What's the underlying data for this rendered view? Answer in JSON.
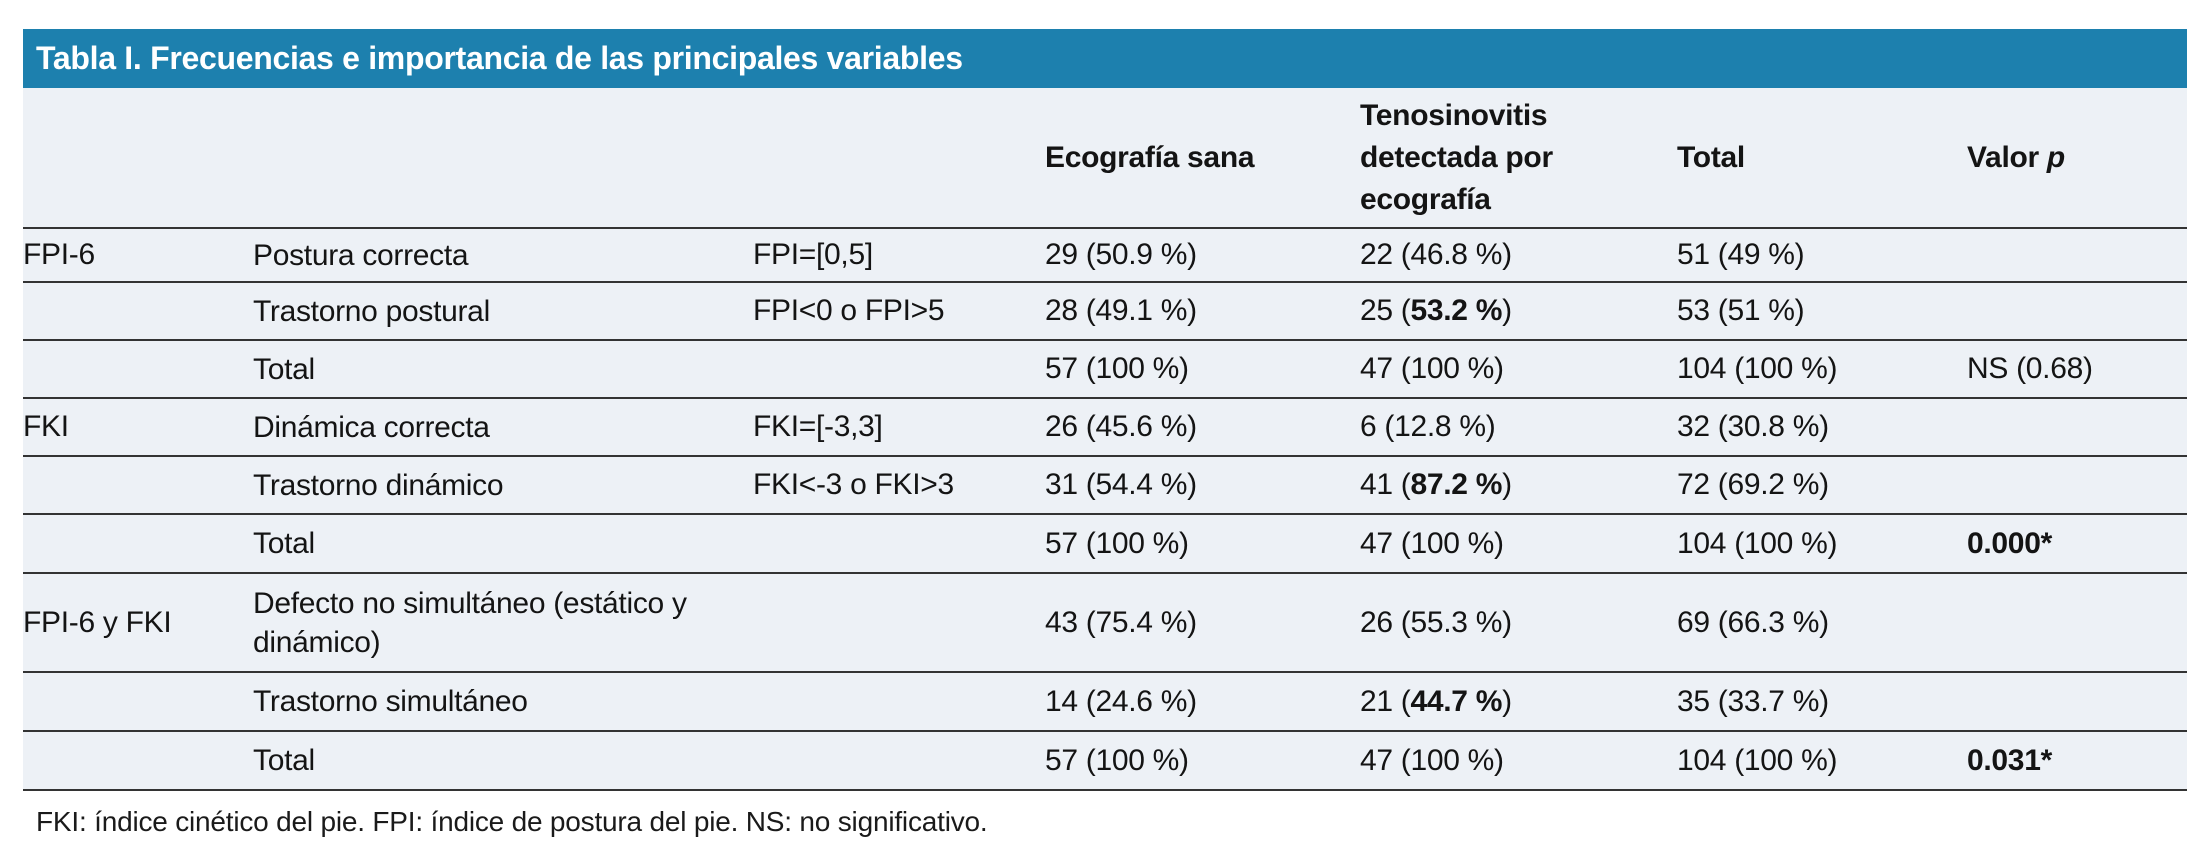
{
  "title": "Tabla I. Frecuencias e importancia de las principales variables",
  "colors": {
    "title_bar": "#1d80ae",
    "table_background": "#edf1f6",
    "rule_line": "#333333",
    "title_text": "#ffffff",
    "body_text": "#141414"
  },
  "columns": {
    "group": "",
    "variable": "",
    "criterion": "",
    "eco": "Ecografía sana",
    "teno": "Tenosinovitis detectada por ecografía",
    "total": "Total",
    "valor": "Valor ",
    "valor_p": "p"
  },
  "table": {
    "rows": [
      {
        "group": "FPI-6",
        "label": "Postura correcta",
        "criterion": "FPI=[0,5]",
        "eco": "29 (50.9 %)",
        "teno": {
          "pre": "22 (46.8 %)",
          "bold": "",
          "post": ""
        },
        "total": "51 (49 %)",
        "p": "",
        "p_bold": ""
      },
      {
        "group": "",
        "label": "Trastorno postural",
        "criterion": "FPI<0 o FPI>5",
        "eco": "28 (49.1 %)",
        "teno": {
          "pre": "25 (",
          "bold": "53.2 %",
          "post": ")"
        },
        "total": "53 (51 %)",
        "p": "",
        "p_bold": ""
      },
      {
        "group": "",
        "label": "Total",
        "criterion": "",
        "eco": "57 (100 %)",
        "teno": {
          "pre": "47 (100 %)",
          "bold": "",
          "post": ""
        },
        "total": "104 (100 %)",
        "p": "NS (0.68)",
        "p_bold": ""
      },
      {
        "group": "FKI",
        "label": "Dinámica correcta",
        "criterion": "FKI=[-3,3]",
        "eco": "26 (45.6 %)",
        "teno": {
          "pre": "6 (12.8 %)",
          "bold": "",
          "post": ""
        },
        "total": "32 (30.8 %)",
        "p": "",
        "p_bold": ""
      },
      {
        "group": "",
        "label": "Trastorno dinámico",
        "criterion": "FKI<-3 o FKI>3",
        "eco": "31 (54.4 %)",
        "teno": {
          "pre": "41 (",
          "bold": "87.2 %",
          "post": ")"
        },
        "total": "72 (69.2 %)",
        "p": "",
        "p_bold": ""
      },
      {
        "group": "",
        "label": "Total",
        "criterion": "",
        "eco": "57 (100 %)",
        "teno": {
          "pre": "47 (100 %)",
          "bold": "",
          "post": ""
        },
        "total": "104 (100 %)",
        "p": "",
        "p_bold": "0.000*"
      },
      {
        "group": "FPI-6 y FKI",
        "label": "Defecto no simultáneo (estático y dinámico)",
        "criterion": "",
        "eco": "43 (75.4 %)",
        "teno": {
          "pre": "26 (55.3 %)",
          "bold": "",
          "post": ""
        },
        "total": "69 (66.3 %)",
        "p": "",
        "p_bold": ""
      },
      {
        "group": "",
        "label": "Trastorno simultáneo",
        "criterion": "",
        "eco": "14 (24.6 %)",
        "teno": {
          "pre": "21 (",
          "bold": "44.7 %",
          "post": ")"
        },
        "total": "35 (33.7 %)",
        "p": "",
        "p_bold": ""
      },
      {
        "group": "",
        "label": "Total",
        "criterion": "",
        "eco": "57 (100 %)",
        "teno": {
          "pre": "47 (100 %)",
          "bold": "",
          "post": ""
        },
        "total": "104 (100 %)",
        "p": "",
        "p_bold": "0.031*"
      }
    ]
  },
  "footnote": "FKI: índice cinético del pie. FPI: índice de postura del pie. NS: no significativo."
}
